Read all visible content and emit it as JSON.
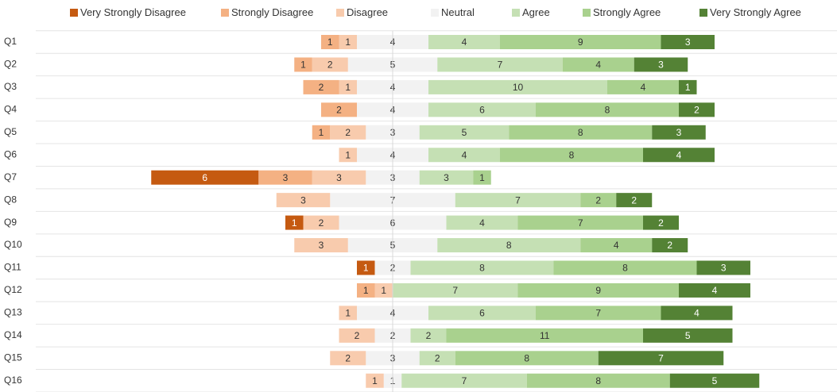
{
  "chart_data": {
    "type": "bar",
    "categories": [
      "Q1",
      "Q2",
      "Q3",
      "Q4",
      "Q5",
      "Q6",
      "Q7",
      "Q8",
      "Q9",
      "Q10",
      "Q11",
      "Q12",
      "Q13",
      "Q14",
      "Q15",
      "Q16"
    ],
    "series": [
      {
        "name": "Very Strongly Disagree",
        "color": "#c55a11",
        "values": [
          null,
          null,
          null,
          null,
          null,
          null,
          6,
          null,
          1,
          null,
          1,
          null,
          null,
          null,
          null,
          null
        ]
      },
      {
        "name": "Strongly Disagree",
        "color": "#f4b183",
        "values": [
          1,
          1,
          2,
          2,
          1,
          null,
          3,
          null,
          null,
          null,
          null,
          1,
          null,
          null,
          null,
          null
        ]
      },
      {
        "name": "Disagree",
        "color": "#f8cbad",
        "values": [
          1,
          2,
          1,
          null,
          2,
          1,
          3,
          3,
          2,
          3,
          null,
          1,
          1,
          2,
          2,
          1
        ]
      },
      {
        "name": "Neutral",
        "color": "#f2f2f2",
        "values": [
          4,
          5,
          4,
          4,
          3,
          4,
          3,
          7,
          6,
          5,
          2,
          null,
          4,
          2,
          3,
          1
        ]
      },
      {
        "name": "Agree",
        "color": "#c5e0b4",
        "values": [
          4,
          7,
          10,
          6,
          5,
          4,
          3,
          7,
          4,
          8,
          8,
          7,
          6,
          2,
          2,
          7
        ]
      },
      {
        "name": "Strongly Agree",
        "color": "#a9d18e",
        "values": [
          9,
          4,
          4,
          8,
          8,
          8,
          1,
          2,
          7,
          4,
          8,
          9,
          7,
          11,
          8,
          8
        ]
      },
      {
        "name": "Very Strongly Agree",
        "color": "#548235",
        "values": [
          3,
          3,
          1,
          2,
          3,
          4,
          null,
          2,
          2,
          2,
          3,
          4,
          4,
          5,
          7,
          5
        ]
      }
    ],
    "legend": "top"
  }
}
